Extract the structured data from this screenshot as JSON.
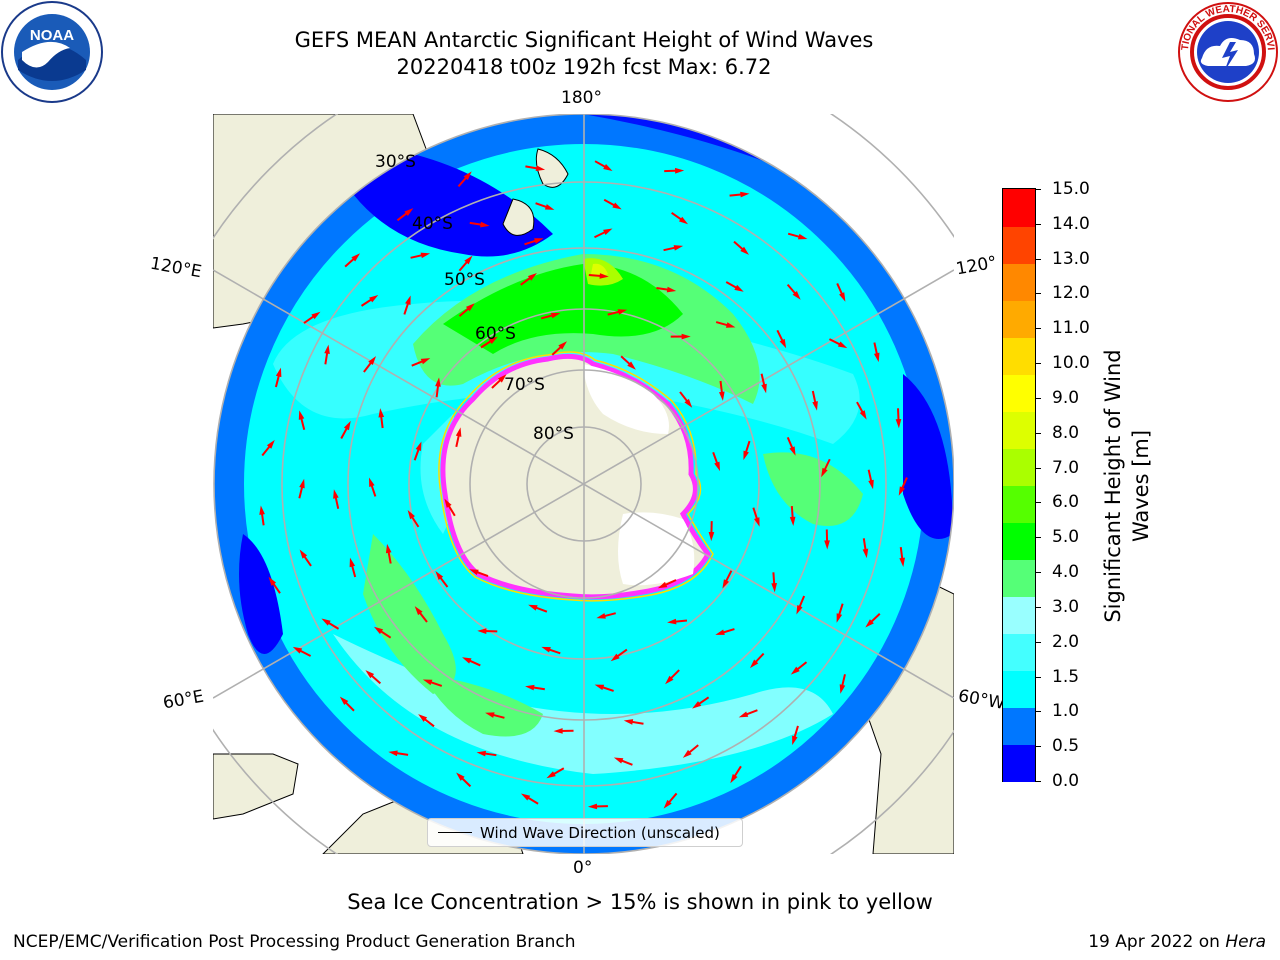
{
  "title": {
    "line1": "GEFS MEAN Antarctic Significant Height of Wind Waves",
    "line2": "20220418 t00z 192h fcst   Max: 6.72"
  },
  "map": {
    "projection": "south-polar-stereographic",
    "longitude_labels": {
      "top": "180°",
      "upper_left": "120°E",
      "upper_right": "120°",
      "lower_left": "60°E",
      "lower_right": "60°W",
      "bottom": "0°"
    },
    "latitude_labels": [
      "30°S",
      "40°S",
      "50°S",
      "60°S",
      "70°S",
      "80°S"
    ],
    "legend_label": "Wind Wave Direction (unscaled)",
    "colors": {
      "land": "#efefdb",
      "ice_outline": "#ff33ff",
      "arrows": "#ff0000"
    }
  },
  "colorbar": {
    "title": "Significant Height of Wind Waves [m]",
    "title_line1": "Significant Height of Wind",
    "title_line2": "Waves [m]",
    "ticks": [
      "15.0",
      "14.0",
      "13.0",
      "12.0",
      "11.0",
      "10.0",
      "9.0",
      "8.0",
      "7.0",
      "6.0",
      "5.0",
      "4.0",
      "3.0",
      "2.0",
      "1.5",
      "1.0",
      "0.5",
      "0.0"
    ],
    "colors_bottom_to_top": [
      "#0000ff",
      "#0077ff",
      "#00ffff",
      "#44ffff",
      "#99ffff",
      "#55ff77",
      "#00ff00",
      "#55ff00",
      "#aaff00",
      "#ddff00",
      "#ffff00",
      "#ffdd00",
      "#ffaa00",
      "#ff8800",
      "#ff4400",
      "#ff0000"
    ]
  },
  "footnote": "Sea Ice Concentration > 15% is shown in pink to yellow",
  "credit": "NCEP/EMC/Verification Post Processing Product Generation Branch",
  "date_prefix": "19 Apr 2022 on ",
  "date_machine": "Hera",
  "logos": {
    "noaa_text": "NOAA",
    "nws_text": "NATIONAL WEATHER SERVICE"
  }
}
